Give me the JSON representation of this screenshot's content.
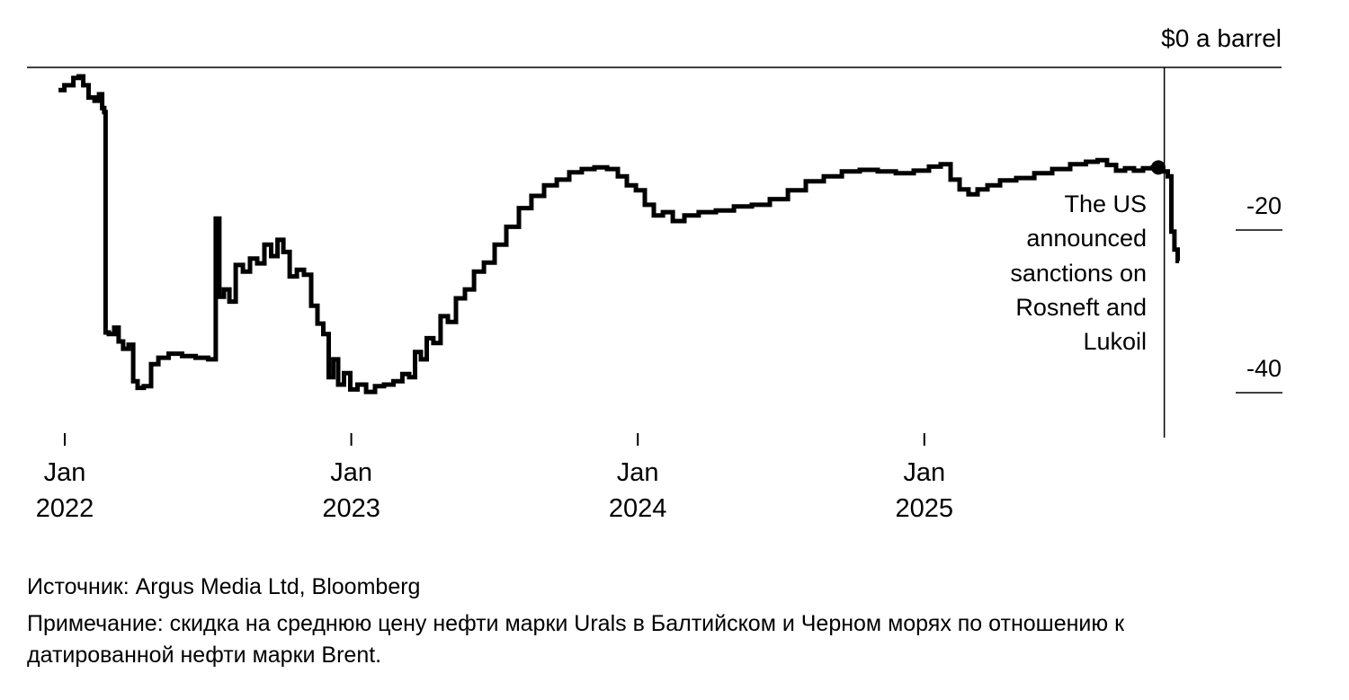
{
  "colors": {
    "line": "#000000",
    "axis": "#000000",
    "text": "#000000",
    "background": "#ffffff"
  },
  "footer": {
    "source": "Источник: Argus Media Ltd, Bloomberg",
    "note": "Примечание: скидка на среднюю цену нефти марки Urals в Балтийском и Черном морях по отношению к датированной нефти марки Brent."
  },
  "chart_data": {
    "type": "line",
    "series_name": "Urals discount to Dated Brent, dollars per barrel",
    "x_unit": "months since Jan 2022",
    "y_axis": {
      "zero_label": "$0 a barrel",
      "ticks": [
        -20,
        -40
      ],
      "range": [
        -45,
        0
      ]
    },
    "x_ticks": [
      {
        "month": 0,
        "label": "Jan\n2022"
      },
      {
        "month": 12,
        "label": "Jan\n2023"
      },
      {
        "month": 24,
        "label": "Jan\n2024"
      },
      {
        "month": 36,
        "label": "Jan\n2025"
      }
    ],
    "annotation": {
      "text": "The US\nannounced\nsanctions on\nRosneft and\nLukoil",
      "line_month": 46.05,
      "marker": {
        "month": 45.8,
        "value": -12.3
      }
    },
    "points": [
      [
        -0.26,
        -2.8
      ],
      [
        0.23,
        -2.2
      ],
      [
        0.49,
        -1.3
      ],
      [
        0.68,
        -1.1
      ],
      [
        0.87,
        -2.2
      ],
      [
        1.13,
        -3.7
      ],
      [
        1.36,
        -4.1
      ],
      [
        1.51,
        -3.3
      ],
      [
        1.62,
        -5.0
      ],
      [
        1.69,
        -5.5
      ],
      [
        1.73,
        -32.6
      ],
      [
        1.96,
        -32.8
      ],
      [
        2.18,
        -32.0
      ],
      [
        2.33,
        -33.7
      ],
      [
        2.56,
        -34.6
      ],
      [
        2.79,
        -34.1
      ],
      [
        2.94,
        -38.6
      ],
      [
        3.16,
        -39.4
      ],
      [
        3.46,
        -39.2
      ],
      [
        3.77,
        -36.5
      ],
      [
        4.07,
        -35.7
      ],
      [
        4.63,
        -35.2
      ],
      [
        5.2,
        -35.5
      ],
      [
        5.76,
        -35.7
      ],
      [
        6.25,
        -35.9
      ],
      [
        6.4,
        -18.6
      ],
      [
        6.55,
        -28.2
      ],
      [
        6.78,
        -27.3
      ],
      [
        7.01,
        -28.8
      ],
      [
        7.31,
        -24.3
      ],
      [
        7.61,
        -25.1
      ],
      [
        7.91,
        -23.5
      ],
      [
        8.21,
        -24.1
      ],
      [
        8.51,
        -21.8
      ],
      [
        8.78,
        -23.2
      ],
      [
        9.04,
        -21.2
      ],
      [
        9.27,
        -22.7
      ],
      [
        9.57,
        -25.7
      ],
      [
        9.87,
        -24.9
      ],
      [
        10.17,
        -25.5
      ],
      [
        10.47,
        -29.3
      ],
      [
        10.7,
        -31.5
      ],
      [
        10.96,
        -32.8
      ],
      [
        11.15,
        -38.1
      ],
      [
        11.34,
        -35.9
      ],
      [
        11.56,
        -39.0
      ],
      [
        11.83,
        -37.6
      ],
      [
        12.09,
        -39.6
      ],
      [
        12.43,
        -39.0
      ],
      [
        12.81,
        -39.9
      ],
      [
        13.18,
        -39.2
      ],
      [
        13.56,
        -39.0
      ],
      [
        13.97,
        -38.6
      ],
      [
        14.31,
        -37.7
      ],
      [
        14.54,
        -38.1
      ],
      [
        14.8,
        -35.0
      ],
      [
        15.03,
        -35.9
      ],
      [
        15.29,
        -33.3
      ],
      [
        15.59,
        -33.9
      ],
      [
        15.89,
        -30.6
      ],
      [
        16.2,
        -31.3
      ],
      [
        16.57,
        -28.4
      ],
      [
        16.95,
        -27.3
      ],
      [
        17.33,
        -25.1
      ],
      [
        17.78,
        -24.0
      ],
      [
        18.23,
        -21.8
      ],
      [
        18.76,
        -19.6
      ],
      [
        19.28,
        -17.3
      ],
      [
        19.81,
        -15.8
      ],
      [
        20.34,
        -14.5
      ],
      [
        20.87,
        -13.8
      ],
      [
        21.39,
        -12.9
      ],
      [
        21.92,
        -12.5
      ],
      [
        22.45,
        -12.3
      ],
      [
        22.98,
        -12.5
      ],
      [
        23.35,
        -13.4
      ],
      [
        23.73,
        -14.5
      ],
      [
        24.11,
        -15.1
      ],
      [
        24.48,
        -16.9
      ],
      [
        24.86,
        -18.2
      ],
      [
        25.24,
        -17.8
      ],
      [
        25.69,
        -18.9
      ],
      [
        26.21,
        -18.2
      ],
      [
        26.89,
        -17.8
      ],
      [
        27.65,
        -17.6
      ],
      [
        28.4,
        -17.1
      ],
      [
        29.15,
        -16.9
      ],
      [
        29.91,
        -16.2
      ],
      [
        30.66,
        -15.1
      ],
      [
        31.41,
        -14.0
      ],
      [
        32.17,
        -13.4
      ],
      [
        32.92,
        -12.8
      ],
      [
        33.67,
        -12.6
      ],
      [
        34.43,
        -12.8
      ],
      [
        35.18,
        -13.0
      ],
      [
        35.93,
        -12.7
      ],
      [
        36.46,
        -12.2
      ],
      [
        36.91,
        -11.9
      ],
      [
        37.29,
        -13.8
      ],
      [
        37.66,
        -15.0
      ],
      [
        38.04,
        -15.6
      ],
      [
        38.42,
        -15.0
      ],
      [
        38.87,
        -14.5
      ],
      [
        39.47,
        -13.9
      ],
      [
        40.23,
        -13.6
      ],
      [
        40.98,
        -13.0
      ],
      [
        41.73,
        -12.5
      ],
      [
        42.49,
        -11.9
      ],
      [
        43.05,
        -11.6
      ],
      [
        43.46,
        -11.4
      ],
      [
        43.84,
        -12.0
      ],
      [
        44.22,
        -12.7
      ],
      [
        44.59,
        -12.4
      ],
      [
        44.97,
        -12.7
      ],
      [
        45.35,
        -12.4
      ],
      [
        45.8,
        -12.3
      ],
      [
        46.1,
        -12.8
      ],
      [
        46.29,
        -13.4
      ],
      [
        46.4,
        -20.2
      ],
      [
        46.55,
        -22.4
      ],
      [
        46.67,
        -23.8
      ]
    ]
  }
}
